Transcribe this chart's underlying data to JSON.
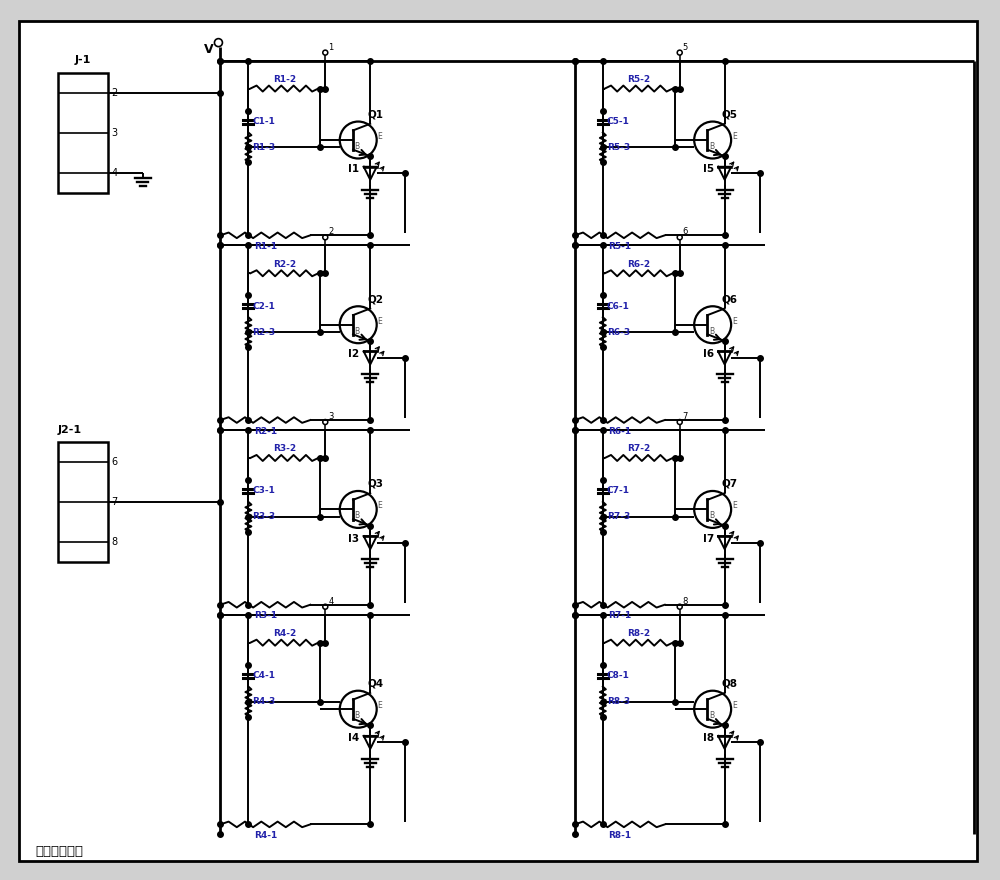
{
  "bg_color": "#ffffff",
  "fig_bg": "#d0d0d0",
  "blue": "#2222aa",
  "black": "#000000",
  "channels_left": [
    {
      "q": "Q1",
      "r2": "R1-2",
      "r3": "R1-3",
      "r1": "R1-1",
      "c": "C1-1",
      "i": "I1",
      "num": "1"
    },
    {
      "q": "Q2",
      "r2": "R2-2",
      "r3": "R2-3",
      "r1": "R2-1",
      "c": "C2-1",
      "i": "I2",
      "num": "2"
    },
    {
      "q": "Q3",
      "r2": "R3-2",
      "r3": "R3-3",
      "r1": "R3-1",
      "c": "C3-1",
      "i": "I3",
      "num": "3"
    },
    {
      "q": "Q4",
      "r2": "R4-2",
      "r3": "R4-3",
      "r1": "R4-1",
      "c": "C4-1",
      "i": "I4",
      "num": "4"
    }
  ],
  "channels_right": [
    {
      "q": "Q5",
      "r2": "R5-2",
      "r3": "R5-3",
      "r1": "R5-1",
      "c": "C5-1",
      "i": "I5",
      "num": "5"
    },
    {
      "q": "Q6",
      "r2": "R6-2",
      "r3": "R6-3",
      "r1": "R6-1",
      "c": "C6-1",
      "i": "I6",
      "num": "6"
    },
    {
      "q": "Q7",
      "r2": "R7-2",
      "r3": "R7-3",
      "r1": "R7-1",
      "c": "C7-1",
      "i": "I7",
      "num": "7"
    },
    {
      "q": "Q8",
      "r2": "R8-2",
      "r3": "R8-3",
      "r1": "R8-1",
      "c": "C8-1",
      "i": "I8",
      "num": "8"
    }
  ],
  "j1_pins": [
    "2",
    "3",
    "4"
  ],
  "j2_pins": [
    "6",
    "7",
    "8"
  ],
  "vcc_label": "V",
  "bottom_label": "光电感应部分",
  "lw": 1.4,
  "lw_heavy": 2.0
}
